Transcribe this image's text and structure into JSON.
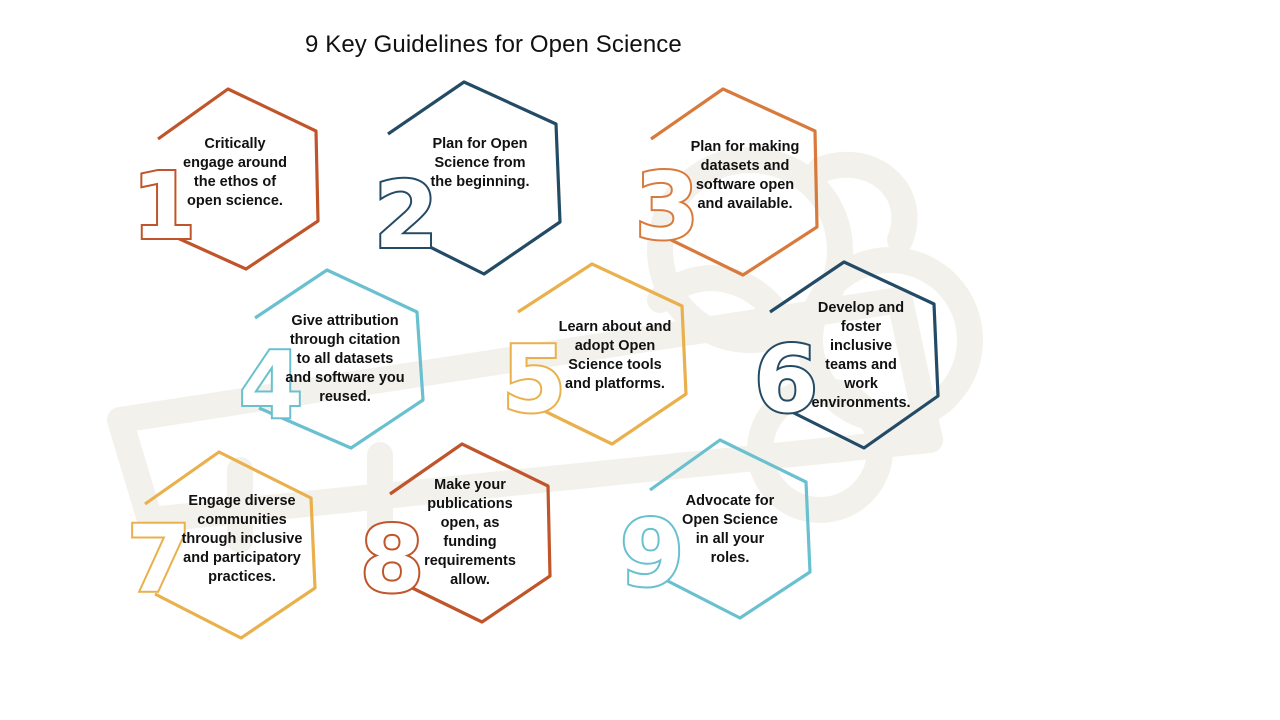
{
  "title": "9 Key Guidelines for Open Science",
  "colors": {
    "rust": "#C0552B",
    "navy": "#244B66",
    "orange": "#D77A3C",
    "teal": "#69C0CF",
    "gold": "#E9B04C",
    "watermark": "#F3F1EC"
  },
  "guidelines": [
    {
      "number": "1",
      "text": "Critically engage around the ethos of open science."
    },
    {
      "number": "2",
      "text": "Plan for Open Science from the beginning."
    },
    {
      "number": "3",
      "text": "Plan for making datasets and software open and available."
    },
    {
      "number": "4",
      "text": "Give attribution through citation to all datasets and software you reused."
    },
    {
      "number": "5",
      "text": "Learn about and adopt Open Science tools and platforms."
    },
    {
      "number": "6",
      "text": "Develop and foster inclusive teams and work environments."
    },
    {
      "number": "7",
      "text": "Engage diverse communities through inclusive and participatory practices."
    },
    {
      "number": "8",
      "text": "Make your publications open, as funding requirements allow."
    },
    {
      "number": "9",
      "text": "Advocate for Open Science in all your roles."
    }
  ]
}
